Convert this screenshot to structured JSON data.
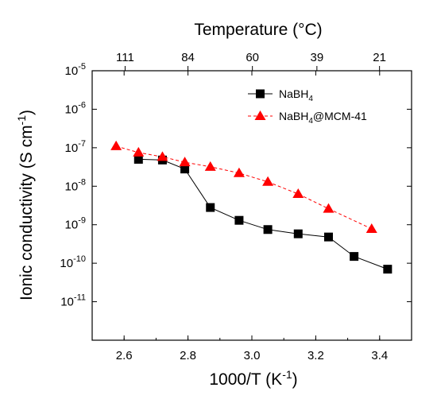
{
  "chart_data": {
    "type": "scatter",
    "title": "",
    "xlabel": "1000/T (K",
    "xlabel_sup": "-1",
    "xlabel_close": ")",
    "ylabel": "Ionic conductivity (S cm",
    "ylabel_sup": "-1",
    "ylabel_close": ")",
    "top_axis_label": "Temperature (°C)",
    "top_tick_labels": [
      "111",
      "84",
      "60",
      "39",
      "21"
    ],
    "x_ticks": [
      "2.6",
      "2.8",
      "3.0",
      "3.2",
      "3.4"
    ],
    "y_tick_base": "10",
    "y_tick_exponents": [
      "-5",
      "-6",
      "-7",
      "-8",
      "-9",
      "-10",
      "-11"
    ],
    "xlim": [
      2.5,
      3.5
    ],
    "ylim": [
      1e-12,
      1e-05
    ],
    "yscale": "log",
    "legend_position": "top-right",
    "series": [
      {
        "name": "NaBH4",
        "legend_main": "NaBH",
        "legend_sub": "4",
        "legend_rest": "",
        "color": "#000000",
        "marker": "square",
        "line": "solid",
        "x": [
          2.645,
          2.72,
          2.79,
          2.87,
          2.96,
          3.05,
          3.145,
          3.24,
          3.32,
          3.425
        ],
        "y": [
          5e-08,
          4.8e-08,
          2.8e-08,
          2.8e-09,
          1.3e-09,
          7.5e-10,
          5.8e-10,
          4.8e-10,
          1.5e-10,
          7e-11
        ]
      },
      {
        "name": "NaBH4@MCM-41",
        "legend_main": "NaBH",
        "legend_sub": "4",
        "legend_rest": "@MCM-41",
        "color": "#ff0000",
        "marker": "triangle",
        "line": "dashed",
        "x": [
          2.575,
          2.645,
          2.72,
          2.79,
          2.87,
          2.96,
          3.05,
          3.145,
          3.24,
          3.375
        ],
        "y": [
          1.1e-07,
          7.5e-08,
          5.8e-08,
          4.2e-08,
          3.2e-08,
          2.2e-08,
          1.3e-08,
          6.3e-09,
          2.6e-09,
          7.8e-10
        ]
      }
    ]
  }
}
